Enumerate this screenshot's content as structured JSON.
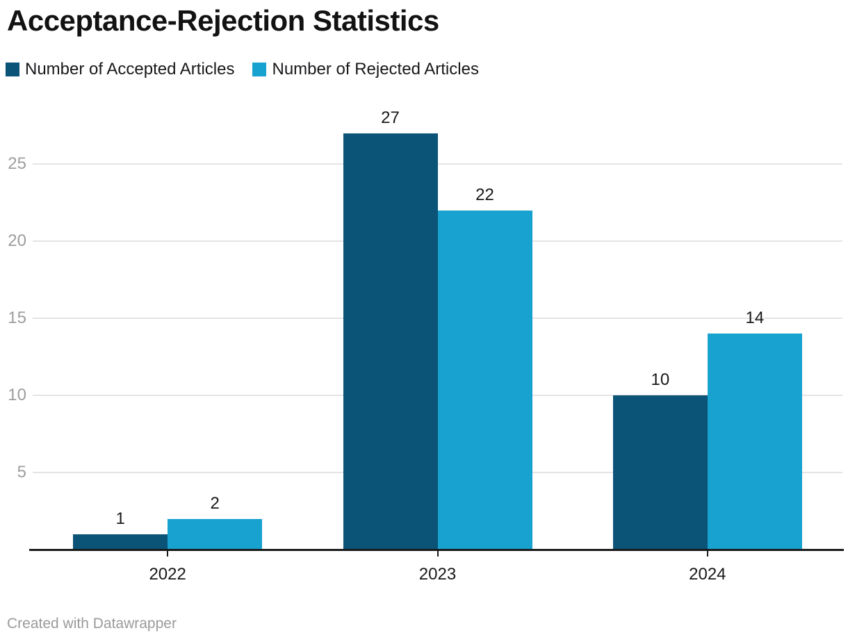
{
  "title": "Acceptance-Rejection Statistics",
  "legend": {
    "items": [
      {
        "label": "Number of Accepted Articles",
        "color": "#0b5377"
      },
      {
        "label": "Number of Rejected Articles",
        "color": "#18a2d0"
      }
    ]
  },
  "footer": {
    "text": "Created with Datawrapper"
  },
  "chart_data": {
    "type": "bar",
    "title": "Acceptance-Rejection Statistics",
    "categories": [
      "2022",
      "2023",
      "2024"
    ],
    "series": [
      {
        "name": "Number of Accepted Articles",
        "color": "#0b5377",
        "values": [
          1,
          27,
          10
        ]
      },
      {
        "name": "Number of Rejected Articles",
        "color": "#18a2d0",
        "values": [
          2,
          22,
          14
        ]
      }
    ],
    "xlabel": "",
    "ylabel": "",
    "ylim": [
      0,
      28
    ],
    "yticks": [
      5,
      10,
      15,
      20,
      25
    ],
    "grid": true,
    "legend_position": "top-left",
    "value_labels": true,
    "colors": {
      "grid": "#e4e4e4",
      "axis": "#1a1a1a",
      "tick_label": "#9d9d9d",
      "value_label": "#18181b"
    }
  }
}
